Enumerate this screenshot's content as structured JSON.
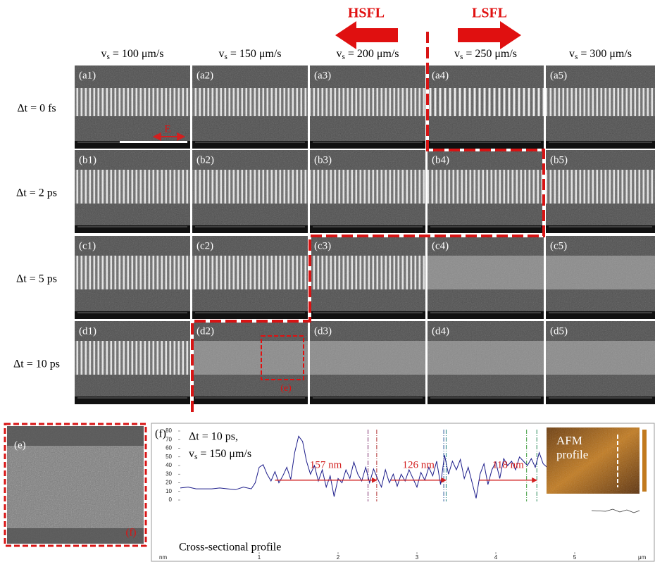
{
  "figure": {
    "arrows": {
      "left": "HSFL",
      "right": "LSFL"
    },
    "columns": [
      {
        "var": "v",
        "sub": "s",
        "rest": " = 100 μm/s"
      },
      {
        "var": "v",
        "sub": "s",
        "rest": " = 150 μm/s"
      },
      {
        "var": "v",
        "sub": "s",
        "rest": " = 200 μm/s"
      },
      {
        "var": "v",
        "sub": "s",
        "rest": " = 250 μm/s"
      },
      {
        "var": "v",
        "sub": "s",
        "rest": " = 300 μm/s"
      }
    ],
    "rows": [
      "Δt = 0 fs",
      "Δt = 2 ps",
      "Δt = 5 ps",
      "Δt = 10 ps"
    ],
    "panels": [
      [
        "(a1)",
        "(a2)",
        "(a3)",
        "(a4)",
        "(a5)"
      ],
      [
        "(b1)",
        "(b2)",
        "(b3)",
        "(b4)",
        "(b5)"
      ],
      [
        "(c1)",
        "(c2)",
        "(c3)",
        "(c4)",
        "(c5)"
      ],
      [
        "(d1)",
        "(d2)",
        "(d3)",
        "(d4)",
        "(d5)"
      ]
    ],
    "field_label": "E",
    "zoom_label": "(e)",
    "panel_e": {
      "label": "(e)",
      "corner": "(f)"
    }
  },
  "chart_data": {
    "type": "line",
    "panel_label": "(f)",
    "annotation": [
      {
        "text": "Δt = 10 ps,"
      },
      {
        "var": "v",
        "sub": "s",
        "rest": " = 150 μm/s"
      }
    ],
    "x": [
      0,
      0.1,
      0.2,
      0.3,
      0.4,
      0.5,
      0.6,
      0.7,
      0.8,
      0.9,
      0.95,
      1.0,
      1.05,
      1.1,
      1.15,
      1.2,
      1.25,
      1.3,
      1.35,
      1.4,
      1.45,
      1.5,
      1.55,
      1.6,
      1.65,
      1.7,
      1.75,
      1.8,
      1.85,
      1.9,
      1.95,
      2.0,
      2.05,
      2.1,
      2.15,
      2.2,
      2.25,
      2.3,
      2.35,
      2.4,
      2.45,
      2.5,
      2.55,
      2.6,
      2.65,
      2.7,
      2.75,
      2.8,
      2.85,
      2.9,
      2.95,
      3.0,
      3.05,
      3.1,
      3.15,
      3.2,
      3.25,
      3.3,
      3.35,
      3.4,
      3.45,
      3.5,
      3.55,
      3.6,
      3.65,
      3.7,
      3.75,
      3.8,
      3.85,
      3.9,
      3.95,
      4.0,
      4.05,
      4.1,
      4.15,
      4.2,
      4.25,
      4.3,
      4.35,
      4.4,
      4.45,
      4.5,
      4.55,
      4.6,
      4.65
    ],
    "series": [
      {
        "color": "#1c1c8a",
        "values": [
          14,
          15,
          13,
          13,
          13,
          14,
          13,
          12,
          15,
          13,
          20,
          38,
          41,
          30,
          22,
          33,
          20,
          28,
          38,
          24,
          55,
          74,
          68,
          45,
          30,
          40,
          22,
          35,
          15,
          28,
          4,
          25,
          20,
          35,
          25,
          44,
          30,
          22,
          38,
          20,
          36,
          25,
          15,
          35,
          20,
          30,
          16,
          30,
          22,
          35,
          25,
          15,
          32,
          23,
          38,
          28,
          45,
          18,
          52,
          30,
          45,
          35,
          47,
          25,
          38,
          20,
          2,
          30,
          42,
          18,
          35,
          44,
          25,
          48,
          40,
          45,
          35,
          50,
          45,
          40,
          48,
          38,
          55,
          42,
          38
        ]
      }
    ],
    "xlim": [
      0,
      5.8
    ],
    "ylim": [
      0,
      80
    ],
    "xticks": [
      1,
      2,
      3,
      4,
      5
    ],
    "yticks": [
      0,
      10,
      20,
      30,
      40,
      50,
      60,
      70,
      80
    ],
    "x_unit": "μm",
    "y_unit": "nm",
    "markers": [
      {
        "x": 2.38,
        "color": "#7a2a6a"
      },
      {
        "x": 2.49,
        "color": "#b03030"
      },
      {
        "x": 3.34,
        "color": "#2a5a9a"
      },
      {
        "x": 3.37,
        "color": "#208080"
      },
      {
        "x": 4.39,
        "color": "#3a9a3a"
      },
      {
        "x": 4.52,
        "color": "#2a8a5a"
      }
    ],
    "spans": [
      {
        "from": 1.2,
        "to": 2.49,
        "y": 23,
        "label": "157 nm"
      },
      {
        "from": 2.67,
        "to": 3.37,
        "y": 23,
        "label": "126 nm"
      },
      {
        "from": 3.79,
        "to": 4.52,
        "y": 23,
        "label": "118 nm"
      }
    ],
    "inset": {
      "title": [
        "AFM",
        "profile"
      ]
    },
    "footer": "Cross-sectional profile"
  }
}
